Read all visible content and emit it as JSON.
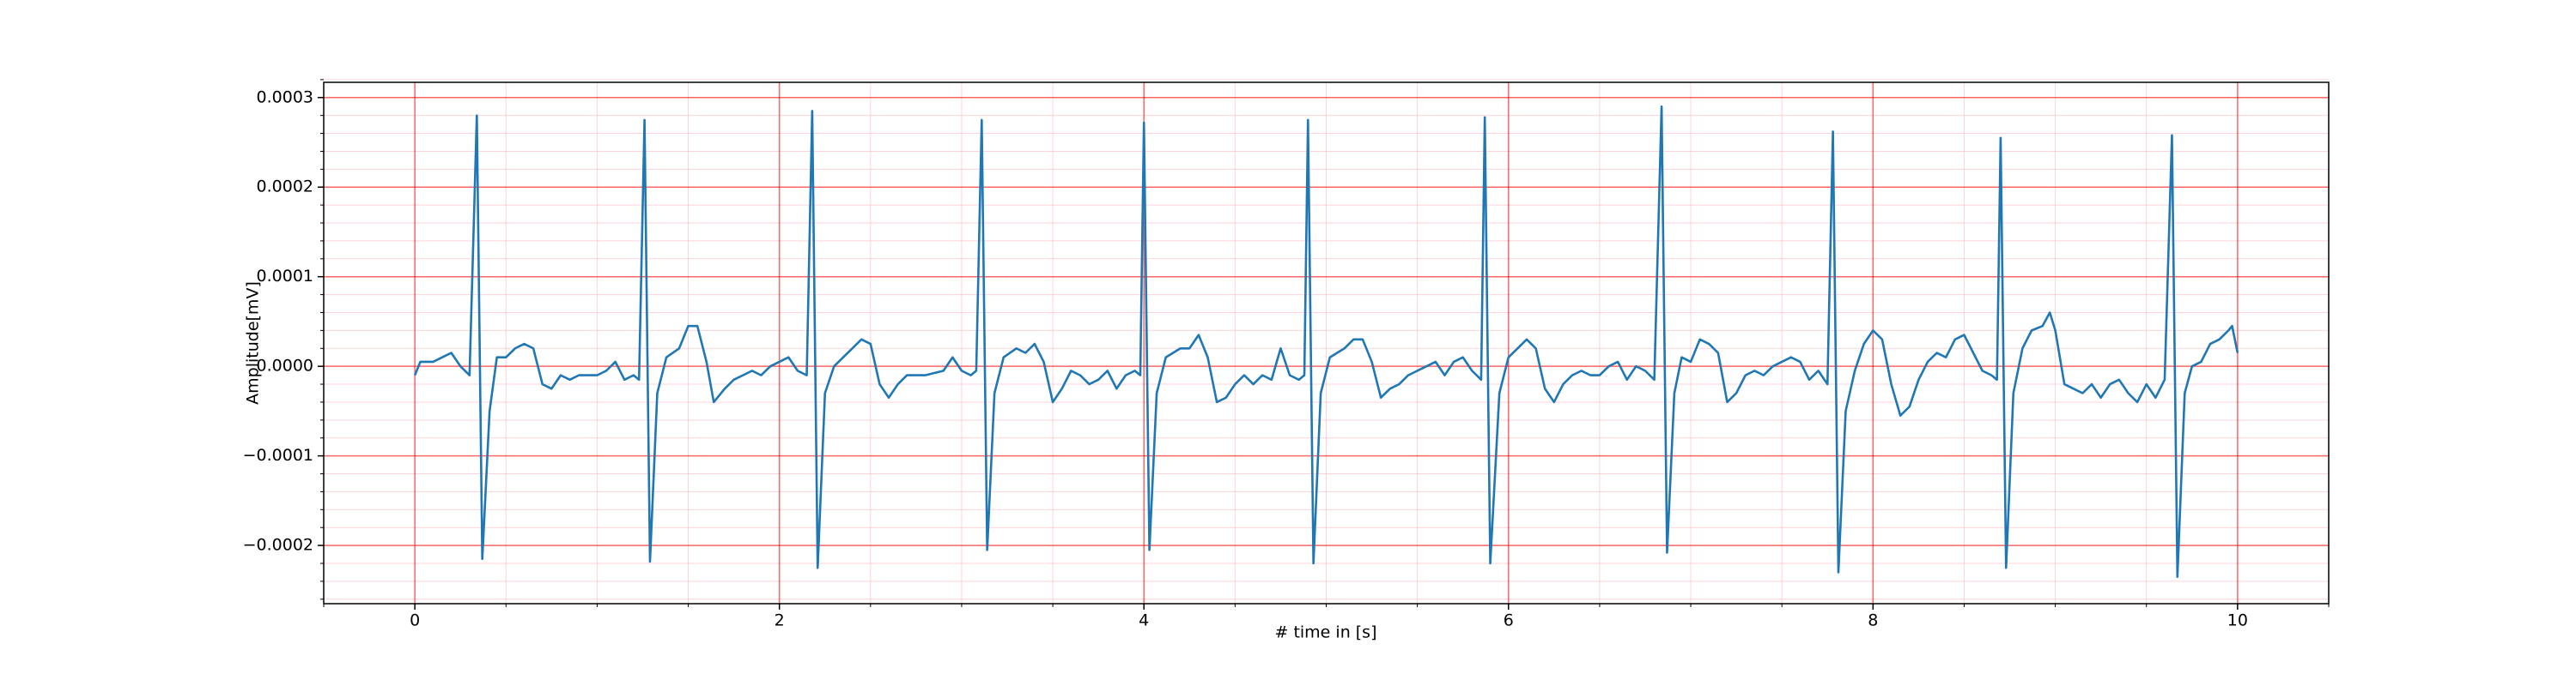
{
  "chart_data": {
    "type": "line",
    "xlabel": "# time in [s]",
    "ylabel": "Amplitude[mV]",
    "x": [
      0,
      0.03,
      0.1,
      0.15,
      0.2,
      0.25,
      0.3,
      0.34,
      0.37,
      0.41,
      0.45,
      0.5,
      0.55,
      0.6,
      0.65,
      0.7,
      0.75,
      0.8,
      0.85,
      0.9,
      0.95,
      1.0,
      1.05,
      1.1,
      1.15,
      1.2,
      1.23,
      1.26,
      1.29,
      1.33,
      1.38,
      1.45,
      1.5,
      1.55,
      1.6,
      1.64,
      1.7,
      1.75,
      1.8,
      1.85,
      1.9,
      1.95,
      2.0,
      2.05,
      2.1,
      2.15,
      2.18,
      2.21,
      2.25,
      2.3,
      2.35,
      2.4,
      2.45,
      2.5,
      2.55,
      2.6,
      2.65,
      2.7,
      2.8,
      2.9,
      2.95,
      3.0,
      3.05,
      3.08,
      3.11,
      3.14,
      3.18,
      3.23,
      3.3,
      3.35,
      3.4,
      3.45,
      3.5,
      3.55,
      3.6,
      3.65,
      3.7,
      3.75,
      3.8,
      3.85,
      3.9,
      3.95,
      3.98,
      4.0,
      4.03,
      4.07,
      4.12,
      4.2,
      4.25,
      4.3,
      4.35,
      4.4,
      4.45,
      4.5,
      4.55,
      4.6,
      4.65,
      4.7,
      4.75,
      4.8,
      4.85,
      4.88,
      4.9,
      4.93,
      4.97,
      5.02,
      5.1,
      5.15,
      5.2,
      5.25,
      5.3,
      5.35,
      5.4,
      5.45,
      5.5,
      5.55,
      5.6,
      5.65,
      5.7,
      5.75,
      5.8,
      5.85,
      5.87,
      5.9,
      5.95,
      6.0,
      6.05,
      6.1,
      6.15,
      6.2,
      6.25,
      6.3,
      6.35,
      6.4,
      6.45,
      6.5,
      6.55,
      6.6,
      6.65,
      6.7,
      6.75,
      6.8,
      6.84,
      6.87,
      6.91,
      6.95,
      7.0,
      7.05,
      7.1,
      7.15,
      7.2,
      7.25,
      7.3,
      7.35,
      7.4,
      7.45,
      7.5,
      7.55,
      7.6,
      7.65,
      7.7,
      7.75,
      7.78,
      7.81,
      7.85,
      7.9,
      7.95,
      8.0,
      8.05,
      8.1,
      8.15,
      8.2,
      8.25,
      8.3,
      8.35,
      8.4,
      8.45,
      8.5,
      8.55,
      8.6,
      8.65,
      8.68,
      8.7,
      8.73,
      8.77,
      8.82,
      8.87,
      8.93,
      8.97,
      9.0,
      9.05,
      9.1,
      9.15,
      9.2,
      9.25,
      9.3,
      9.35,
      9.4,
      9.45,
      9.5,
      9.55,
      9.6,
      9.64,
      9.67,
      9.71,
      9.75,
      9.8,
      9.85,
      9.9,
      9.95,
      9.97,
      10.0
    ],
    "series": [
      {
        "color": "#1f77b4",
        "values": [
          -1e-05,
          5e-06,
          5e-06,
          1e-05,
          1.5e-05,
          0,
          -1e-05,
          0.00028,
          -0.000215,
          -5e-05,
          1e-05,
          1e-05,
          2e-05,
          2.5e-05,
          2e-05,
          -2e-05,
          -2.5e-05,
          -1e-05,
          -1.5e-05,
          -1e-05,
          -1e-05,
          -1e-05,
          -5e-06,
          5e-06,
          -1.5e-05,
          -1e-05,
          -1.5e-05,
          0.000275,
          -0.000218,
          -3e-05,
          1e-05,
          2e-05,
          4.5e-05,
          4.5e-05,
          5e-06,
          -4e-05,
          -2.5e-05,
          -1.5e-05,
          -1e-05,
          -5e-06,
          -1e-05,
          0,
          5e-06,
          1e-05,
          -5e-06,
          -1e-05,
          0.000285,
          -0.000225,
          -3e-05,
          0,
          1e-05,
          2e-05,
          3e-05,
          2.5e-05,
          -2e-05,
          -3.5e-05,
          -2e-05,
          -1e-05,
          -1e-05,
          -5e-06,
          1e-05,
          -5e-06,
          -1e-05,
          -5e-06,
          0.000275,
          -0.000205,
          -3e-05,
          1e-05,
          2e-05,
          1.5e-05,
          2.5e-05,
          5e-06,
          -4e-05,
          -2.5e-05,
          -5e-06,
          -1e-05,
          -2e-05,
          -1.5e-05,
          -5e-06,
          -2.5e-05,
          -1e-05,
          -5e-06,
          -1e-05,
          0.000272,
          -0.000205,
          -3e-05,
          1e-05,
          2e-05,
          2e-05,
          3.5e-05,
          1e-05,
          -4e-05,
          -3.5e-05,
          -2e-05,
          -1e-05,
          -2e-05,
          -1e-05,
          -1.5e-05,
          2e-05,
          -1e-05,
          -1.5e-05,
          -1e-05,
          0.000275,
          -0.00022,
          -3e-05,
          1e-05,
          2e-05,
          3e-05,
          3e-05,
          5e-06,
          -3.5e-05,
          -2.5e-05,
          -2e-05,
          -1e-05,
          -5e-06,
          0,
          5e-06,
          -1e-05,
          5e-06,
          1e-05,
          -5e-06,
          -1.5e-05,
          0.000278,
          -0.00022,
          -3e-05,
          1e-05,
          2e-05,
          3e-05,
          2e-05,
          -2.5e-05,
          -4e-05,
          -2e-05,
          -1e-05,
          -5e-06,
          -1e-05,
          -1e-05,
          0,
          5e-06,
          -1.5e-05,
          0,
          -5e-06,
          -1.5e-05,
          0.00029,
          -0.000208,
          -3e-05,
          1e-05,
          5e-06,
          3e-05,
          2.5e-05,
          1.5e-05,
          -4e-05,
          -3e-05,
          -1e-05,
          -5e-06,
          -1e-05,
          0,
          5e-06,
          1e-05,
          5e-06,
          -1.5e-05,
          -5e-06,
          -2e-05,
          0.000262,
          -0.00023,
          -5e-05,
          -5e-06,
          2.5e-05,
          4e-05,
          3e-05,
          -2e-05,
          -5.5e-05,
          -4.5e-05,
          -1.5e-05,
          5e-06,
          1.5e-05,
          1e-05,
          3e-05,
          3.5e-05,
          1.5e-05,
          -5e-06,
          -1e-05,
          -1.5e-05,
          0.000255,
          -0.000225,
          -3e-05,
          2e-05,
          4e-05,
          4.5e-05,
          6e-05,
          4e-05,
          -2e-05,
          -2.5e-05,
          -3e-05,
          -2e-05,
          -3.5e-05,
          -2e-05,
          -1.5e-05,
          -3e-05,
          -4e-05,
          -2e-05,
          -3.5e-05,
          -1.5e-05,
          0.000258,
          -0.000235,
          -3e-05,
          0,
          5e-06,
          2.5e-05,
          3e-05,
          4e-05,
          4.5e-05,
          1.5e-05
        ]
      }
    ],
    "xlim": [
      -0.5,
      10.5
    ],
    "ylim": [
      -0.000265,
      0.000317
    ],
    "xticks": [
      0,
      2,
      4,
      6,
      8,
      10
    ],
    "yticks": [
      {
        "value": -0.0002,
        "label": "−0.0002"
      },
      {
        "value": -0.0001,
        "label": "−0.0001"
      },
      {
        "value": 0,
        "label": "0.0000"
      },
      {
        "value": 0.0001,
        "label": "0.0001"
      },
      {
        "value": 0.0002,
        "label": "0.0002"
      },
      {
        "value": 0.0003,
        "label": "0.0003"
      }
    ],
    "xminorticks": [
      -0.5,
      0.5,
      1,
      1.5,
      2.5,
      3,
      3.5,
      4.5,
      5,
      5.5,
      6.5,
      7,
      7.5,
      8.5,
      9,
      9.5,
      10.5
    ],
    "yminorticks": [
      -0.00026,
      -0.00024,
      -0.00022,
      -0.00018,
      -0.00016,
      -0.00014,
      -0.00012,
      -8e-05,
      -6e-05,
      -4e-05,
      -2e-05,
      2e-05,
      4e-05,
      6e-05,
      8e-05,
      0.00012,
      0.00014,
      0.00016,
      0.00018,
      0.00022,
      0.00024,
      0.00026,
      0.00028,
      0.00032
    ],
    "grid": true,
    "grid_color": "#ff0000",
    "minor_grid_color": "#ffb6c1"
  }
}
